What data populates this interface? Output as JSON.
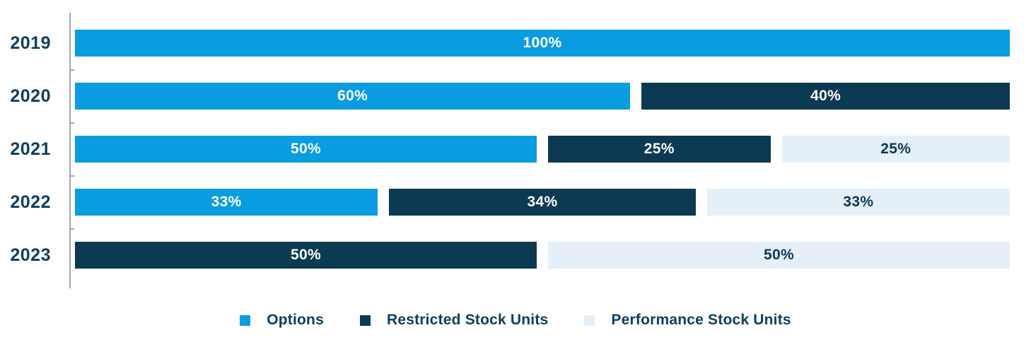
{
  "chart_data": {
    "type": "bar",
    "orientation": "horizontal",
    "stacked": true,
    "title": "",
    "categories": [
      "2019",
      "2020",
      "2021",
      "2022",
      "2023"
    ],
    "series": [
      {
        "name": "Options",
        "color": "#0a9ce0",
        "label_color": "#ffffff",
        "values": [
          100,
          60,
          50,
          33,
          0
        ]
      },
      {
        "name": "Restricted Stock Units",
        "color": "#0c3a52",
        "label_color": "#ffffff",
        "values": [
          0,
          40,
          25,
          34,
          50
        ]
      },
      {
        "name": "Performance Stock Units",
        "color": "#e4eff8",
        "label_color": "#0c3a52",
        "values": [
          0,
          0,
          25,
          33,
          50
        ]
      }
    ],
    "value_label_format": "{value}%",
    "value_labels_shown": [
      "100%",
      "60%",
      "40%",
      "50%",
      "25%",
      "25%",
      "33%",
      "34%",
      "33%",
      "50%",
      "50%"
    ],
    "xlim": [
      0,
      100
    ],
    "grid": false,
    "legend_position": "bottom",
    "axis_color": "#a2a6a9"
  },
  "legend": {
    "items": [
      {
        "label": "Options",
        "color": "#0a9ce0"
      },
      {
        "label": "Restricted Stock Units",
        "color": "#0c3a52"
      },
      {
        "label": "Performance Stock Units",
        "color": "#e4eff8"
      }
    ]
  }
}
